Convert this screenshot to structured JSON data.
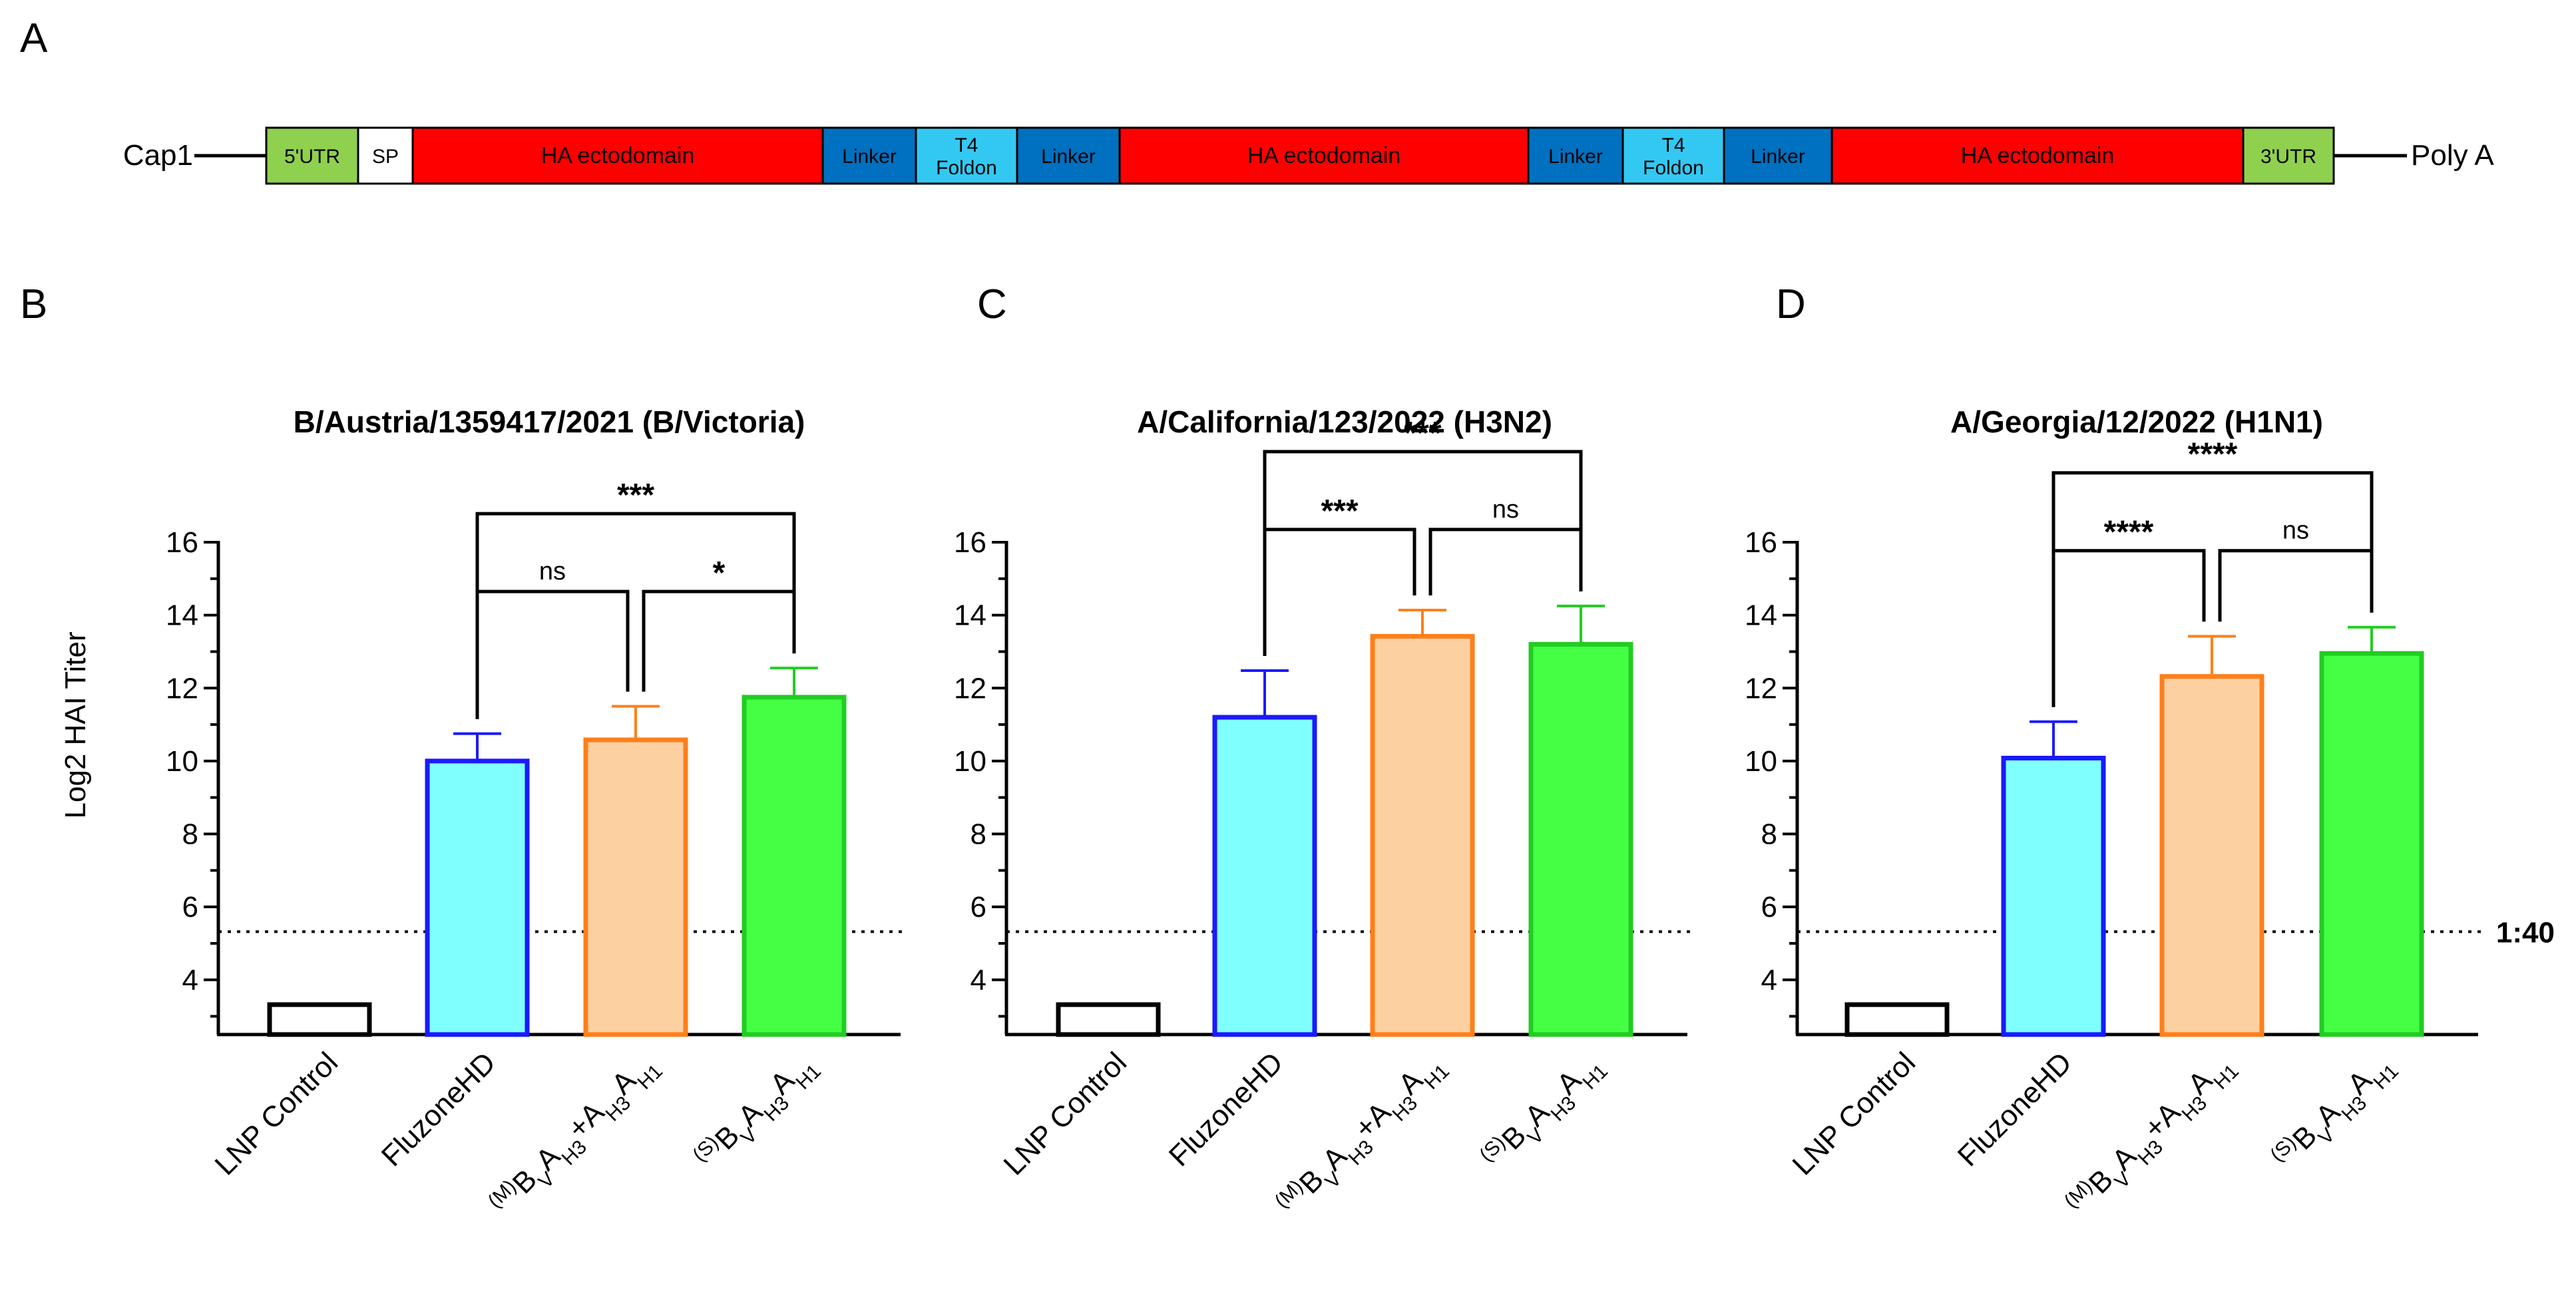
{
  "panel_letters": [
    "A",
    "B",
    "C",
    "D"
  ],
  "construct": {
    "left_label": "Cap1",
    "right_label": "Poly A",
    "segments": [
      {
        "text": "5'UTR",
        "color": "#8fd14f"
      },
      {
        "text": "SP",
        "color": "#ffffff"
      },
      {
        "text": "HA ectodomain",
        "color": "#ff0000"
      },
      {
        "text": "Linker",
        "color": "#0070c0"
      },
      {
        "text": "T4\nFoldon",
        "color": "#33c8f2"
      },
      {
        "text": "Linker",
        "color": "#0070c0"
      },
      {
        "text": "HA ectodomain",
        "color": "#ff0000"
      },
      {
        "text": "Linker",
        "color": "#0070c0"
      },
      {
        "text": "T4\nFoldon",
        "color": "#33c8f2"
      },
      {
        "text": "Linker",
        "color": "#0070c0"
      },
      {
        "text": "HA ectodomain",
        "color": "#ff0000"
      },
      {
        "text": "3'UTR",
        "color": "#8fd14f"
      }
    ]
  },
  "categories": [
    {
      "label": "LNP Control",
      "sub_label": false
    },
    {
      "label": "FluzoneHD",
      "sub_label": false
    },
    {
      "parts": [
        [
          "(M)",
          "sup"
        ],
        [
          "B",
          ""
        ],
        [
          "V",
          "sub"
        ],
        [
          "A",
          ""
        ],
        [
          "H3",
          "sub"
        ],
        [
          "+A",
          ""
        ],
        [
          "H3",
          "sub"
        ],
        [
          "A",
          ""
        ],
        [
          "H1",
          "sub"
        ]
      ]
    },
    {
      "parts": [
        [
          "(S)",
          "sup"
        ],
        [
          "B",
          ""
        ],
        [
          "V",
          "sub"
        ],
        [
          "A",
          ""
        ],
        [
          "H3",
          "sub"
        ],
        [
          "A",
          ""
        ],
        [
          "H1",
          "sub"
        ]
      ]
    }
  ],
  "bar_styles": [
    {
      "fill": "#ffffff",
      "stroke": "#000000"
    },
    {
      "fill": "#80ffff",
      "stroke": "#1a1aff"
    },
    {
      "fill": "#fdd0a2",
      "stroke": "#ff7f1a"
    },
    {
      "fill": "#44ff44",
      "stroke": "#22cc22"
    }
  ],
  "y_axis_label": "Log2 HAI Titer",
  "threshold_label": "1:40",
  "chart_data": [
    {
      "type": "bar",
      "title": "B/Austria/1359417/2021 (B/Victoria)",
      "ylabel": "Log2 HAI Titer",
      "ylim": [
        2.5,
        16
      ],
      "yticks": [
        4,
        6,
        8,
        10,
        12,
        14,
        16
      ],
      "threshold": 5.32,
      "categories": [
        "LNP Control",
        "FluzoneHD",
        "(M)BVAH3+AH3AH1",
        "(S)BVAH3AH1"
      ],
      "values": [
        3.32,
        10.0,
        10.58,
        11.75
      ],
      "errors": [
        0,
        0.75,
        0.92,
        0.8
      ],
      "significance": [
        {
          "from": 1,
          "to": 3,
          "label": "***",
          "level": 1
        },
        {
          "from": 1,
          "to": 2,
          "label": "ns",
          "level": 0
        },
        {
          "from": 2,
          "to": 3,
          "label": "*",
          "level": 0
        }
      ]
    },
    {
      "type": "bar",
      "title": "A/California/123/2022 (H3N2)",
      "ylabel": "Log2 HAI Titer",
      "ylim": [
        2.5,
        16
      ],
      "yticks": [
        4,
        6,
        8,
        10,
        12,
        14,
        16
      ],
      "threshold": 5.32,
      "categories": [
        "LNP Control",
        "FluzoneHD",
        "(M)BVAH3+AH3AH1",
        "(S)BVAH3AH1"
      ],
      "values": [
        3.32,
        11.2,
        13.42,
        13.2
      ],
      "errors": [
        0,
        1.28,
        0.72,
        1.05
      ],
      "significance": [
        {
          "from": 1,
          "to": 3,
          "label": "***",
          "level": 1
        },
        {
          "from": 1,
          "to": 2,
          "label": "***",
          "level": 0
        },
        {
          "from": 2,
          "to": 3,
          "label": "ns",
          "level": 0
        }
      ]
    },
    {
      "type": "bar",
      "title": "A/Georgia/12/2022 (H1N1)",
      "ylabel": "Log2 HAI Titer",
      "ylim": [
        2.5,
        16
      ],
      "yticks": [
        4,
        6,
        8,
        10,
        12,
        14,
        16
      ],
      "threshold": 5.32,
      "threshold_label": "1:40",
      "categories": [
        "LNP Control",
        "FluzoneHD",
        "(M)BVAH3+AH3AH1",
        "(S)BVAH3AH1"
      ],
      "values": [
        3.32,
        10.08,
        12.32,
        12.95
      ],
      "errors": [
        0,
        1.0,
        1.1,
        0.72
      ],
      "significance": [
        {
          "from": 1,
          "to": 3,
          "label": "****",
          "level": 1
        },
        {
          "from": 1,
          "to": 2,
          "label": "****",
          "level": 0
        },
        {
          "from": 2,
          "to": 3,
          "label": "ns",
          "level": 0
        }
      ]
    }
  ]
}
